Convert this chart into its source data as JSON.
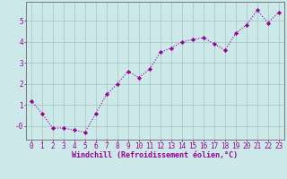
{
  "x": [
    0,
    1,
    2,
    3,
    4,
    5,
    6,
    7,
    8,
    9,
    10,
    11,
    12,
    13,
    14,
    15,
    16,
    17,
    18,
    19,
    20,
    21,
    22,
    23
  ],
  "y": [
    1.2,
    0.6,
    -0.1,
    -0.1,
    -0.2,
    -0.3,
    0.6,
    1.5,
    2.0,
    2.6,
    2.3,
    2.7,
    3.5,
    3.7,
    4.0,
    4.1,
    4.2,
    3.9,
    3.6,
    4.4,
    4.8,
    5.5,
    4.9,
    5.4
  ],
  "line_color": "#990099",
  "marker": "D",
  "marker_size": 2.2,
  "bg_color": "#cce8e8",
  "grid_color": "#aacaca",
  "xlabel": "Windchill (Refroidissement éolien,°C)",
  "ylabel": "",
  "xlim": [
    -0.5,
    23.5
  ],
  "ylim": [
    -0.65,
    5.9
  ],
  "yticks": [
    0,
    1,
    2,
    3,
    4,
    5
  ],
  "ytick_labels": [
    "-0",
    "1",
    "2",
    "3",
    "4",
    "5"
  ],
  "xticks": [
    0,
    1,
    2,
    3,
    4,
    5,
    6,
    7,
    8,
    9,
    10,
    11,
    12,
    13,
    14,
    15,
    16,
    17,
    18,
    19,
    20,
    21,
    22,
    23
  ],
  "tick_color": "#990099",
  "label_color": "#990099",
  "axis_color": "#777777",
  "xlabel_fontsize": 6.0,
  "tick_fontsize": 5.5
}
